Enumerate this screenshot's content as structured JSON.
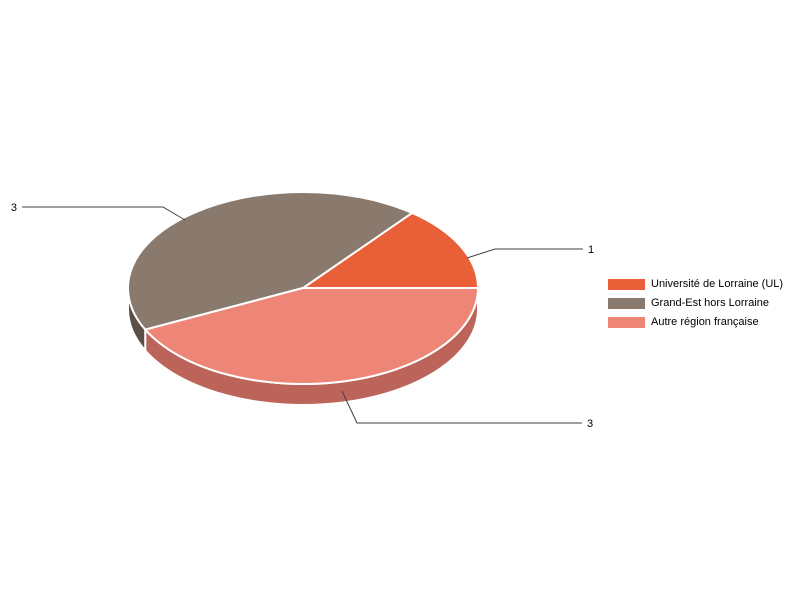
{
  "chart_data": {
    "type": "pie",
    "style": "3d",
    "title": "",
    "labels": [
      "Université de Lorraine (UL)",
      "Grand-Est hors Lorraine",
      "Autre région française"
    ],
    "values": [
      1,
      3,
      3
    ],
    "callout_labels": [
      "1",
      "3",
      "3"
    ],
    "colors": [
      "#E85F38",
      "#8A796D",
      "#EE8678"
    ],
    "side_colors": [
      "#B04A2B",
      "#5C5046",
      "#BC6459"
    ],
    "separator_color": "#FFFFFF",
    "callout_line_color": "#404040",
    "label_color": "#000000",
    "background_color": "#FFFFFF",
    "start_angle_deg": 0,
    "direction": "counterclockwise",
    "legend_position": "right"
  }
}
